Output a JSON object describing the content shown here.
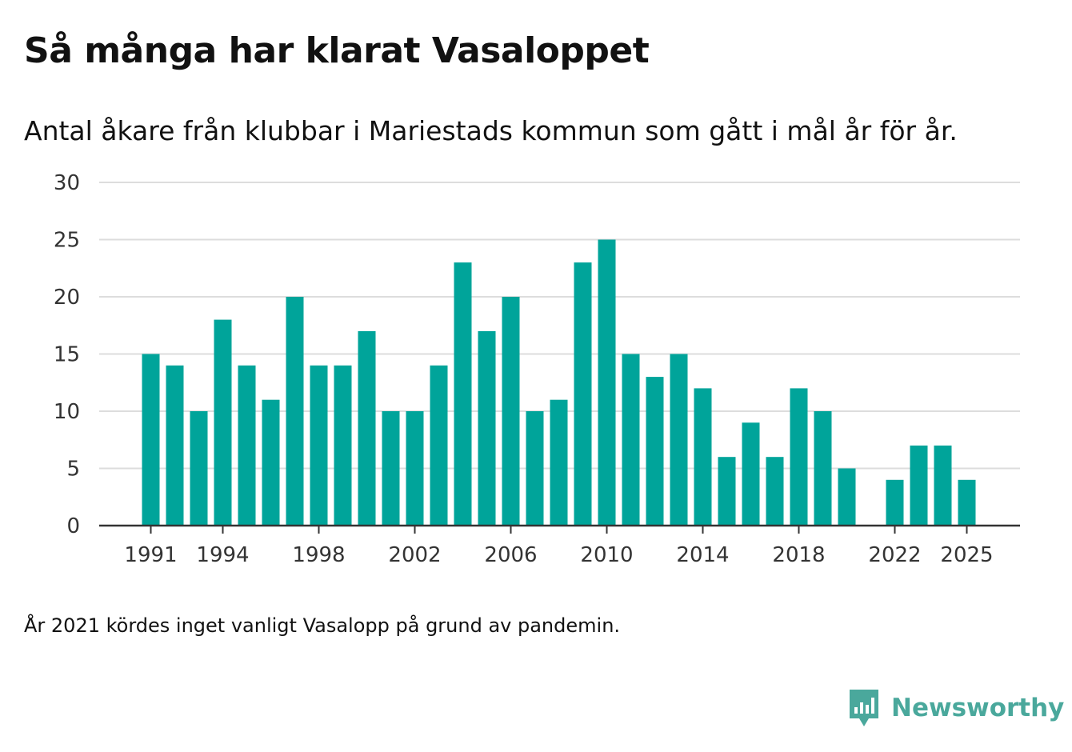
{
  "header": {
    "title": "Så många har klarat Vasaloppet",
    "subtitle": "Antal åkare från klubbar i Mariestads kommun som gått i mål år för år."
  },
  "footnote": "År 2021 kördes inget vanligt Vasalopp på grund av pandemin.",
  "brand": {
    "name": "Newsworthy",
    "icon": "newsworthy-logo-icon",
    "color": "#4aa89c"
  },
  "colors": {
    "bar": "#00a49a",
    "grid": "#dddddd",
    "axis": "#333333"
  },
  "chart_data": {
    "type": "bar",
    "title": "Så många har klarat Vasaloppet",
    "subtitle": "Antal åkare från klubbar i Mariestads kommun som gått i mål år för år.",
    "xlabel": "",
    "ylabel": "",
    "ylim": [
      0,
      30
    ],
    "yticks": [
      0,
      5,
      10,
      15,
      20,
      25,
      30
    ],
    "grid": true,
    "legend": "none",
    "xtick_labels": [
      1991,
      1994,
      1998,
      2002,
      2006,
      2010,
      2014,
      2018,
      2022,
      2025
    ],
    "x_domain": [
      1990,
      2026
    ],
    "categories": [
      1991,
      1992,
      1993,
      1994,
      1995,
      1996,
      1997,
      1998,
      1999,
      2000,
      2001,
      2002,
      2003,
      2004,
      2005,
      2006,
      2007,
      2008,
      2009,
      2010,
      2011,
      2012,
      2013,
      2014,
      2015,
      2016,
      2017,
      2018,
      2019,
      2020,
      2022,
      2023,
      2024,
      2025
    ],
    "values": [
      15,
      14,
      10,
      18,
      14,
      11,
      20,
      14,
      14,
      17,
      10,
      10,
      14,
      23,
      17,
      20,
      10,
      11,
      23,
      25,
      15,
      13,
      15,
      12,
      6,
      9,
      6,
      12,
      10,
      5,
      4,
      7,
      7,
      4
    ]
  }
}
